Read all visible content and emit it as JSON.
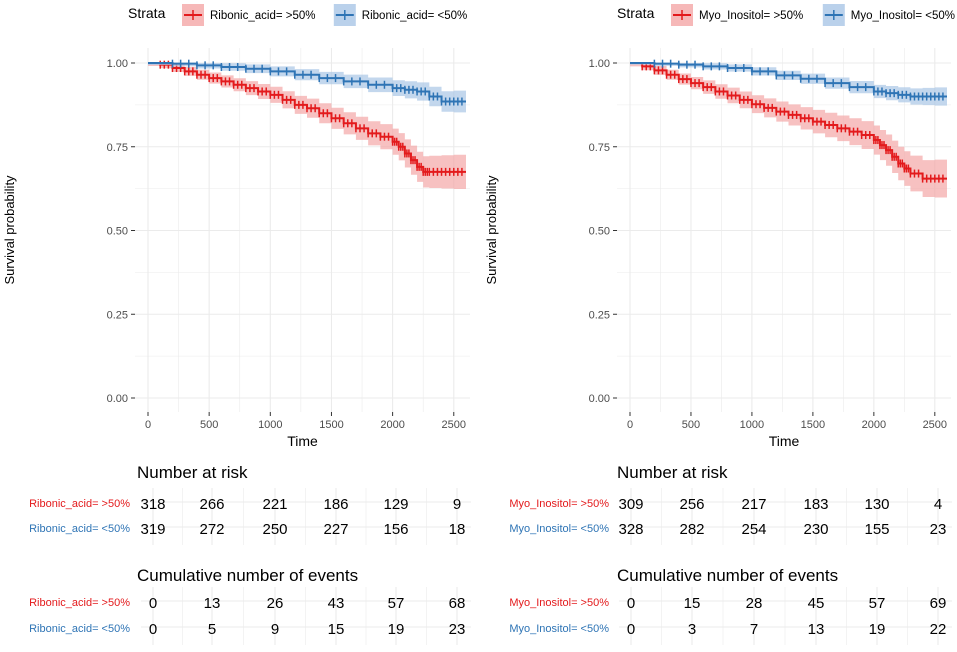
{
  "colors": {
    "high": "#e31a1c",
    "low": "#2e74b5",
    "high_band": "#f4a6a6",
    "low_band": "#a9c6e6",
    "grid": "#ebebeb",
    "axis_text": "#4d4d4d"
  },
  "chart_data": [
    {
      "type": "line",
      "subtype": "kaplan-meier",
      "legend_title": "Strata",
      "legend_position": "top",
      "xlabel": "Time",
      "ylabel": "Survival probability",
      "xlim": [
        0,
        2600
      ],
      "ylim": [
        0,
        1
      ],
      "x_ticks": [
        "0",
        "500",
        "1000",
        "1500",
        "2000",
        "2500"
      ],
      "y_ticks": [
        "0.00",
        "0.25",
        "0.50",
        "0.75",
        "1.00"
      ],
      "series": [
        {
          "name": "Ribonic_acid= >50%",
          "color_key": "high",
          "x": [
            0,
            100,
            200,
            300,
            400,
            500,
            600,
            700,
            800,
            900,
            1000,
            1100,
            1200,
            1300,
            1400,
            1500,
            1600,
            1700,
            1800,
            1900,
            2000,
            2050,
            2100,
            2150,
            2200,
            2250,
            2300,
            2400,
            2500,
            2600
          ],
          "y": [
            1.0,
            0.995,
            0.985,
            0.975,
            0.965,
            0.955,
            0.945,
            0.935,
            0.925,
            0.915,
            0.905,
            0.89,
            0.875,
            0.865,
            0.85,
            0.835,
            0.82,
            0.805,
            0.79,
            0.78,
            0.765,
            0.75,
            0.73,
            0.71,
            0.69,
            0.675,
            0.675,
            0.675,
            0.675,
            0.675
          ],
          "band": 0.045
        },
        {
          "name": "Ribonic_acid= <50%",
          "color_key": "low",
          "x": [
            0,
            200,
            400,
            600,
            800,
            1000,
            1200,
            1400,
            1600,
            1800,
            2000,
            2100,
            2200,
            2300,
            2400,
            2500,
            2600
          ],
          "y": [
            1.0,
            0.998,
            0.993,
            0.988,
            0.983,
            0.975,
            0.965,
            0.955,
            0.945,
            0.935,
            0.925,
            0.92,
            0.915,
            0.9,
            0.885,
            0.885,
            0.885
          ],
          "band": 0.03
        }
      ],
      "risk_table": {
        "title": "Number at risk",
        "rows": [
          {
            "label": "Ribonic_acid= >50%",
            "color_key": "high",
            "values": [
              "318",
              "266",
              "221",
              "186",
              "129",
              "9"
            ]
          },
          {
            "label": "Ribonic_acid= <50%",
            "color_key": "low",
            "values": [
              "319",
              "272",
              "250",
              "227",
              "156",
              "18"
            ]
          }
        ]
      },
      "events_table": {
        "title": "Cumulative number of events",
        "rows": [
          {
            "label": "Ribonic_acid= >50%",
            "color_key": "high",
            "values": [
              "0",
              "13",
              "26",
              "43",
              "57",
              "68"
            ]
          },
          {
            "label": "Ribonic_acid= <50%",
            "color_key": "low",
            "values": [
              "0",
              "5",
              "9",
              "15",
              "19",
              "23"
            ]
          }
        ]
      }
    },
    {
      "type": "line",
      "subtype": "kaplan-meier",
      "legend_title": "Strata",
      "legend_position": "top",
      "xlabel": "Time",
      "ylabel": "Survival probability",
      "xlim": [
        0,
        2600
      ],
      "ylim": [
        0,
        1
      ],
      "x_ticks": [
        "0",
        "500",
        "1000",
        "1500",
        "2000",
        "2500"
      ],
      "y_ticks": [
        "0.00",
        "0.25",
        "0.50",
        "0.75",
        "1.00"
      ],
      "series": [
        {
          "name": "Myo_Inositol= >50%",
          "color_key": "high",
          "x": [
            0,
            100,
            200,
            300,
            400,
            500,
            600,
            700,
            800,
            900,
            1000,
            1100,
            1200,
            1300,
            1400,
            1500,
            1600,
            1700,
            1800,
            1900,
            2000,
            2050,
            2100,
            2150,
            2200,
            2250,
            2300,
            2400,
            2500,
            2600
          ],
          "y": [
            1.0,
            0.99,
            0.978,
            0.965,
            0.952,
            0.94,
            0.928,
            0.915,
            0.903,
            0.89,
            0.877,
            0.866,
            0.855,
            0.845,
            0.835,
            0.825,
            0.815,
            0.805,
            0.795,
            0.785,
            0.77,
            0.755,
            0.74,
            0.72,
            0.7,
            0.685,
            0.67,
            0.655,
            0.655,
            0.655
          ],
          "band": 0.05
        },
        {
          "name": "Myo_Inositol= <50%",
          "color_key": "low",
          "x": [
            0,
            200,
            400,
            600,
            800,
            1000,
            1200,
            1400,
            1600,
            1800,
            2000,
            2100,
            2200,
            2300,
            2400,
            2500,
            2600
          ],
          "y": [
            1.0,
            0.998,
            0.995,
            0.99,
            0.985,
            0.975,
            0.963,
            0.953,
            0.94,
            0.928,
            0.915,
            0.91,
            0.905,
            0.9,
            0.9,
            0.9,
            0.9
          ],
          "band": 0.025
        }
      ],
      "risk_table": {
        "title": "Number at risk",
        "rows": [
          {
            "label": "Myo_Inositol= >50%",
            "color_key": "high",
            "values": [
              "309",
              "256",
              "217",
              "183",
              "130",
              "4"
            ]
          },
          {
            "label": "Myo_Inositol= <50%",
            "color_key": "low",
            "values": [
              "328",
              "282",
              "254",
              "230",
              "155",
              "23"
            ]
          }
        ]
      },
      "events_table": {
        "title": "Cumulative number of events",
        "rows": [
          {
            "label": "Myo_Inositol= >50%",
            "color_key": "high",
            "values": [
              "0",
              "15",
              "28",
              "45",
              "57",
              "69"
            ]
          },
          {
            "label": "Myo_Inositol= <50%",
            "color_key": "low",
            "values": [
              "0",
              "3",
              "7",
              "13",
              "19",
              "22"
            ]
          }
        ]
      }
    }
  ]
}
